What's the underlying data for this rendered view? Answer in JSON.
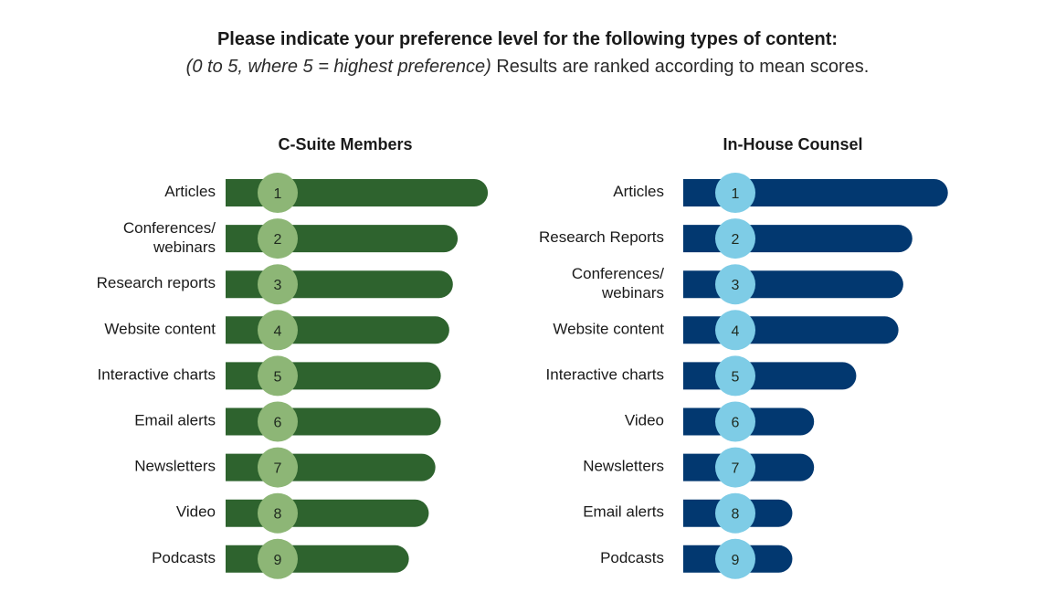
{
  "header": {
    "title": "Please indicate your preference level for the following types of content:",
    "subtitle_italic": "(0 to 5, where 5 = highest preference)",
    "subtitle_rest": " Results are ranked according to mean scores."
  },
  "colors": {
    "csuite_bar": "#2e632e",
    "csuite_badge": "#8db676",
    "counsel_bar": "#023870",
    "counsel_badge": "#7ecce6"
  },
  "chart_data": [
    {
      "type": "bar",
      "orientation": "horizontal",
      "title": "C-Suite Members",
      "scale": [
        0,
        5
      ],
      "categories": [
        "Articles",
        "Conferences/\nwebinars",
        "Research reports",
        "Website content",
        "Interactive charts",
        "Email alerts",
        "Newsletters",
        "Video",
        "Podcasts"
      ],
      "ranks": [
        "1",
        "2",
        "3",
        "4",
        "5",
        "6",
        "7",
        "8",
        "9"
      ],
      "values": [
        4.35,
        3.85,
        3.77,
        3.71,
        3.57,
        3.57,
        3.48,
        3.37,
        3.04
      ]
    },
    {
      "type": "bar",
      "orientation": "horizontal",
      "title": "In-House Counsel",
      "scale": [
        0,
        5
      ],
      "categories": [
        "Articles",
        "Research Reports",
        "Conferences/\nwebinars",
        "Website content",
        "Interactive charts",
        "Video",
        "Newsletters",
        "Email alerts",
        "Podcasts"
      ],
      "ranks": [
        "1",
        "2",
        "3",
        "4",
        "5",
        "6",
        "7",
        "8",
        "9"
      ],
      "values": [
        4.39,
        3.8,
        3.65,
        3.57,
        2.87,
        2.17,
        2.17,
        1.81,
        1.81
      ]
    }
  ]
}
